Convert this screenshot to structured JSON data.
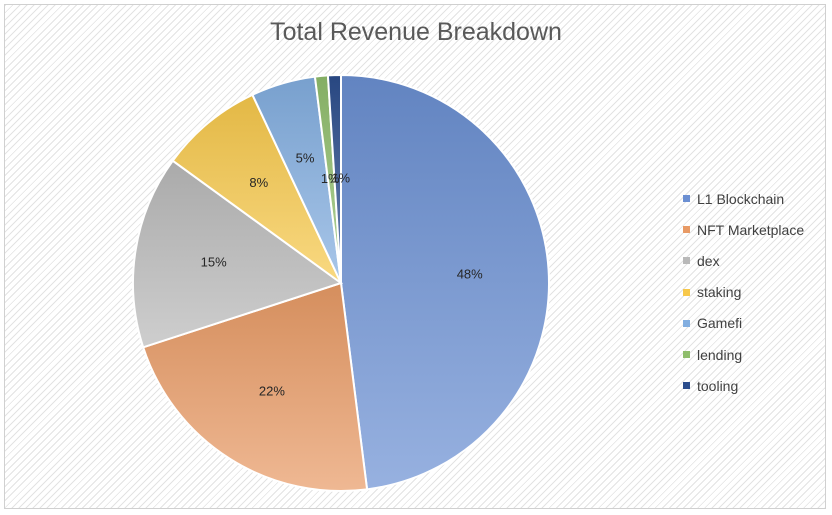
{
  "chart_data": {
    "type": "pie",
    "title": "Total Revenue Breakdown",
    "legend_position": "right",
    "categories": [
      "L1 Blockchain",
      "NFT Marketplace",
      "dex",
      "staking",
      "Gamefi",
      "lending",
      "tooling"
    ],
    "values": [
      48,
      22,
      15,
      8,
      5,
      1,
      1
    ],
    "data_labels": [
      "48%",
      "22%",
      "15%",
      "8%",
      "5%",
      "1%",
      "1%"
    ],
    "colors": [
      "#6b8fd2",
      "#e89a65",
      "#b9b9b9",
      "#f7c84b",
      "#82aee0",
      "#8fbd6c",
      "#2b4d8c"
    ]
  }
}
